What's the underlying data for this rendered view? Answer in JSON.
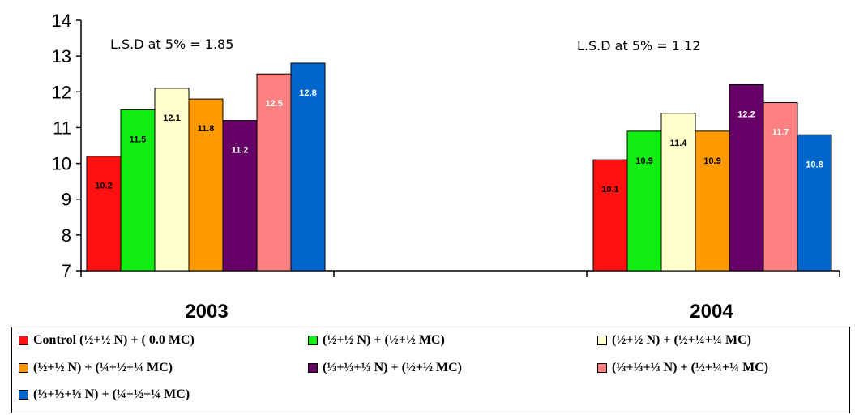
{
  "chart_data": {
    "type": "bar",
    "categories": [
      "2003",
      "2004"
    ],
    "ylim": [
      7,
      14
    ],
    "yticks": [
      7,
      8,
      9,
      10,
      11,
      12,
      13,
      14
    ],
    "grid": false,
    "legend_position": "bottom",
    "annotations": [
      "L.S.D at 5% = 1.85",
      "L.S.D at 5% = 1.12"
    ],
    "series": [
      {
        "name": "Control (½+½ N) + ( 0.0 MC)",
        "color": "#ff1111",
        "values": [
          10.2,
          10.1
        ],
        "label_color": "#000000"
      },
      {
        "name": "(½+½ N) + (½+½ MC)",
        "color": "#11ee11",
        "values": [
          11.5,
          10.9
        ],
        "label_color": "#000000"
      },
      {
        "name": "(½+½ N) + (½+¼+¼ MC)",
        "color": "#ffffcc",
        "values": [
          12.1,
          11.4
        ],
        "label_color": "#000000"
      },
      {
        "name": "(½+½ N) + (¼+½+¼ MC)",
        "color": "#ff9900",
        "values": [
          11.8,
          10.9
        ],
        "label_color": "#000000"
      },
      {
        "name": "(⅓+⅓+⅓ N) + (½+½ MC)",
        "color": "#660066",
        "values": [
          11.2,
          12.2
        ],
        "label_color": "#ffffff"
      },
      {
        "name": "(⅓+⅓+⅓ N) + (½+¼+¼ MC)",
        "color": "#ff8080",
        "values": [
          12.5,
          11.7
        ],
        "label_color": "#ffffff"
      },
      {
        "name": "(⅓+⅓+⅓ N) + (¼+½+¼ MC)",
        "color": "#0066cc",
        "values": [
          12.8,
          10.8
        ],
        "label_color": "#ffffff"
      }
    ],
    "data_labels": [
      [
        "10.2",
        "10.1"
      ],
      [
        "11.5",
        "10.9"
      ],
      [
        "12.1",
        "11.4"
      ],
      [
        "11.8",
        "10.9"
      ],
      [
        "11.2",
        "12.2"
      ],
      [
        "12.5",
        "11.7"
      ],
      [
        "12.8",
        "10.8"
      ]
    ]
  }
}
